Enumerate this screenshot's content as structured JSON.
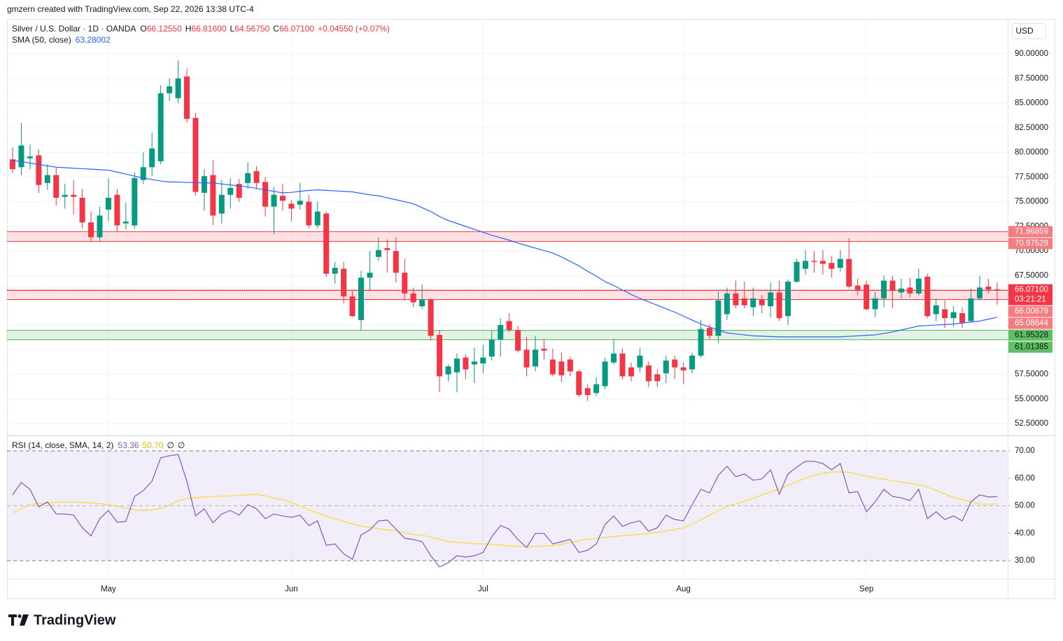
{
  "header": {
    "attribution": "gmzern created with TradingView.com, Sep 22, 2026 13:38 UTC-4",
    "currency": "USD"
  },
  "footer": {
    "brand": "TradingView"
  },
  "chart_data": [
    {
      "type": "candlestick",
      "legend": {
        "title": "Silver / U.S. Dollar · 1D · OANDA",
        "items": [
          {
            "key": "O",
            "value": "66.12550"
          },
          {
            "key": "H",
            "value": "66.81600"
          },
          {
            "key": "L",
            "value": "64.56750"
          },
          {
            "key": "C",
            "value": "66.07100"
          }
        ],
        "change": "+0.04550 (+0.07%)"
      },
      "up_color": "#089981",
      "down_color": "#f23645",
      "categories": [
        null,
        null,
        null,
        null,
        null,
        null,
        null,
        null,
        null,
        null,
        null,
        "May",
        null,
        null,
        null,
        null,
        null,
        null,
        null,
        null,
        null,
        null,
        null,
        null,
        null,
        null,
        null,
        null,
        null,
        null,
        null,
        null,
        "Jun",
        null,
        null,
        null,
        null,
        null,
        null,
        null,
        null,
        null,
        null,
        null,
        null,
        null,
        null,
        null,
        null,
        null,
        null,
        null,
        null,
        null,
        "Jul",
        null,
        null,
        null,
        null,
        null,
        null,
        null,
        null,
        null,
        null,
        null,
        null,
        null,
        null,
        null,
        null,
        null,
        null,
        null,
        null,
        null,
        null,
        "Aug",
        null,
        null,
        null,
        null,
        null,
        null,
        null,
        null,
        null,
        null,
        null,
        null,
        null,
        null,
        null,
        null,
        null,
        null,
        null,
        null,
        "Sep",
        null,
        null,
        null,
        null,
        null,
        null,
        null,
        null,
        null,
        null,
        null,
        null,
        null,
        null,
        null
      ],
      "open": [
        79.3,
        78.5,
        79.4,
        79.7,
        76.9,
        77.7,
        75.5,
        75.7,
        75.4,
        72.9,
        71.4,
        74.2,
        75.7,
        72.8,
        72.6,
        77.2,
        78.5,
        79.1,
        86.0,
        85.5,
        87.7,
        83.5,
        75.9,
        77.7,
        73.8,
        75.7,
        76.8,
        76.9,
        78.1,
        77.0,
        74.5,
        75.6,
        74.8,
        74.7,
        75.0,
        72.6,
        73.8,
        67.7,
        68.2,
        65.4,
        63.0,
        67.3,
        69.4,
        70.3,
        70.0,
        67.8,
        65.7,
        64.4,
        65.1,
        61.5,
        57.5,
        57.7,
        59.2,
        58.5,
        58.6,
        59.3,
        61.0,
        62.9,
        62.0,
        60.0,
        58.3,
        60.1,
        59.0,
        58.8,
        59.0,
        57.8,
        56.1,
        55.6,
        56.3,
        58.7,
        59.6,
        58.2,
        58.2,
        58.4,
        57.5,
        57.6,
        59.0,
        58.2,
        58.0,
        59.4,
        62.2,
        61.4,
        63.6,
        65.7,
        65.2,
        64.3,
        65.1,
        64.4,
        65.8,
        63.4,
        66.9,
        68.2,
        69.0,
        69.0,
        68.8,
        68.3,
        69.2,
        66.5,
        66.6,
        64.1,
        65.2,
        67.0,
        65.8,
        66.3,
        65.7,
        67.4,
        63.6,
        64.1,
        63.2,
        63.7,
        62.9,
        65.2,
        66.4,
        66.1255
      ],
      "high": [
        80.5,
        83,
        80.8,
        80.3,
        78.8,
        78.5,
        76.8,
        77.2,
        76.3,
        74.0,
        74.5,
        77.4,
        76.3,
        74.9,
        78,
        80,
        82.0,
        86.8,
        87.5,
        89.3,
        88.5,
        84.0,
        78.3,
        79.2,
        77.2,
        77.4,
        77.3,
        79.0,
        78.6,
        77.5,
        76.5,
        76.8,
        75.2,
        76.9,
        75.7,
        75.0,
        74.0,
        68.9,
        68.9,
        66.0,
        68.0,
        70.0,
        71.4,
        71.2,
        71.4,
        69.2,
        66.3,
        66.6,
        65.2,
        62.0,
        58.5,
        59.6,
        59.5,
        60.2,
        60.5,
        61.9,
        63.2,
        63.7,
        62.4,
        61.3,
        61.4,
        61.1,
        60.1,
        59.7,
        59.3,
        58.0,
        56.5,
        57.2,
        59.2,
        61.1,
        60.1,
        58.7,
        60.2,
        58.8,
        58.0,
        59.4,
        59.4,
        58.7,
        59.7,
        63.0,
        62.6,
        65.9,
        66.3,
        67.0,
        66.9,
        66.3,
        65.5,
        66.8,
        67.0,
        67.1,
        69.2,
        70.1,
        70.0,
        70.1,
        69.5,
        70.1,
        71.3,
        67.2,
        67.0,
        65.9,
        67.5,
        67.5,
        67.2,
        67.3,
        68.2,
        67.7,
        65.2,
        65.0,
        64.4,
        64.3,
        66.2,
        67.5,
        67.2,
        66.816
      ],
      "low": [
        77.9,
        77.7,
        78.3,
        75.9,
        76.2,
        74.6,
        74.3,
        73.7,
        72.3,
        70.9,
        71.0,
        73,
        72.0,
        72.2,
        72.3,
        76.8,
        77.6,
        78.8,
        85.2,
        85.0,
        83.0,
        75.6,
        74.1,
        72.6,
        72.8,
        74.3,
        75.0,
        76.3,
        76.3,
        73.5,
        71.7,
        74.1,
        73.0,
        74.2,
        72.3,
        72.3,
        67.4,
        66.7,
        64.7,
        63.3,
        62.0,
        66.0,
        69.0,
        67.8,
        66.8,
        65.0,
        64.3,
        64.1,
        60.9,
        55.7,
        56.8,
        55.7,
        57.0,
        56.6,
        57.6,
        58.9,
        59.3,
        61.8,
        59.7,
        57.3,
        57.8,
        59.0,
        57.3,
        56.7,
        57.3,
        55.2,
        54.8,
        55.3,
        56.0,
        58.5,
        57.0,
        56.8,
        57.7,
        56.2,
        56.2,
        56.6,
        57.0,
        56.5,
        57.6,
        59.2,
        61.0,
        60.7,
        63.0,
        64.2,
        64.2,
        63.4,
        63.7,
        63.3,
        62.9,
        62.5,
        66.8,
        67.6,
        67.8,
        67.6,
        67.3,
        67.9,
        66.2,
        65.5,
        64.0,
        63.3,
        64.3,
        64.2,
        65.2,
        65.3,
        65.5,
        63.2,
        62.9,
        62.2,
        62.3,
        62.2,
        62.8,
        65.0,
        65.7,
        64.5675
      ],
      "close": [
        78.3,
        80.7,
        79.6,
        76.7,
        77.7,
        75.4,
        75.7,
        75.5,
        72.9,
        71.4,
        73.6,
        75.4,
        72.6,
        73.0,
        77.4,
        78.5,
        80.4,
        86.0,
        86.7,
        87.5,
        83.4,
        76.0,
        77.6,
        73.6,
        75.7,
        76.4,
        75.4,
        77.9,
        76.9,
        74.5,
        75.7,
        75.1,
        74.3,
        75.1,
        72.6,
        74.0,
        67.7,
        68.3,
        65.4,
        63.4,
        67.3,
        67.8,
        70.1,
        70.1,
        67.8,
        65.7,
        64.8,
        65.1,
        61.4,
        57.3,
        58.3,
        59.1,
        58.0,
        58.8,
        59.2,
        61.0,
        62.5,
        62.0,
        59.9,
        58.2,
        60.0,
        59.9,
        57.5,
        57.4,
        57.8,
        55.4,
        55.4,
        56.5,
        58.8,
        59.6,
        57.3,
        57.3,
        59.4,
        56.8,
        56.8,
        58.9,
        58.2,
        57.9,
        59.4,
        62.1,
        61.4,
        65.0,
        65.7,
        64.5,
        64.5,
        65.2,
        64.5,
        65.8,
        63.2,
        66.9,
        68.9,
        69.0,
        68.9,
        68.7,
        68.2,
        69.2,
        66.4,
        66.0,
        64.1,
        65.2,
        67.0,
        66.0,
        66.2,
        65.7,
        67.2,
        63.4,
        64.5,
        63.2,
        63.8,
        62.7,
        65.2,
        66.3,
        66.1,
        66.071
      ],
      "series": [
        {
          "name": "SMA (50, close)",
          "legend_value": "63.28002",
          "color": "#2962ff",
          "values": [
            79.2,
            79.06,
            78.92,
            78.78,
            78.64,
            78.5,
            78.45,
            78.4,
            78.35,
            78.3,
            78.25,
            78.2,
            78.0,
            77.8,
            77.6,
            77.4,
            77.25,
            77.1,
            77.0,
            77.0,
            76.95,
            76.95,
            76.9,
            76.9,
            76.8,
            76.7,
            76.6,
            76.5,
            76.35,
            76.2,
            76.05,
            75.9,
            75.95,
            76.05,
            76.15,
            76.2,
            76.15,
            76.1,
            76.05,
            76.0,
            75.85,
            75.7,
            75.6,
            75.4,
            75.2,
            75.0,
            74.8,
            74.4,
            74.0,
            73.5,
            73.1,
            72.8,
            72.5,
            72.2,
            71.9,
            71.6,
            71.35,
            71.1,
            70.8,
            70.55,
            70.3,
            70.05,
            69.8,
            69.4,
            68.95,
            68.5,
            67.95,
            67.45,
            66.9,
            66.5,
            66.05,
            65.6,
            65.2,
            64.85,
            64.5,
            64.15,
            63.8,
            63.4,
            63.0,
            62.6,
            62.3,
            62.0,
            61.7,
            61.6,
            61.5,
            61.4,
            61.37,
            61.33,
            61.3,
            61.3,
            61.3,
            61.3,
            61.3,
            61.3,
            61.3,
            61.3,
            61.35,
            61.4,
            61.45,
            61.5,
            61.65,
            61.8,
            62.0,
            62.2,
            62.4,
            62.45,
            62.5,
            62.55,
            62.6,
            62.7,
            62.8,
            62.9,
            63.1,
            63.28
          ]
        }
      ],
      "zones": [
        {
          "top": 71.96859,
          "bottom": 70.97529,
          "color": "#f23645",
          "fill": "rgba(242,54,69,0.15)",
          "label_color": "#f77c80",
          "text_color": "#ffffff"
        },
        {
          "top": 66.00879,
          "bottom": 65.08644,
          "color": "#f23645",
          "fill": "rgba(242,54,69,0.15)",
          "label_color": "#f77c80",
          "text_color": "#ffffff"
        },
        {
          "top": 61.95328,
          "bottom": 61.01385,
          "color": "#4caf50",
          "fill": "rgba(76,175,80,0.15)",
          "label_color": "#5fbf63",
          "text_color": "#131722"
        }
      ],
      "last": {
        "value": 66.071,
        "label": "66.07100",
        "countdown": "03:21:21",
        "color": "#f23645"
      },
      "ylim": [
        51.37,
        93.54
      ],
      "yticks": [
        {
          "value": 52.5,
          "label": "52.50000"
        },
        {
          "value": 55,
          "label": "55.00000"
        },
        {
          "value": 57.5,
          "label": "57.50000"
        },
        {
          "value": 60,
          "label": "60.00000"
        },
        {
          "value": 62.5,
          "label": "62.50000"
        },
        {
          "value": 65,
          "label": "65.00000"
        },
        {
          "value": 67.5,
          "label": "67.50000"
        },
        {
          "value": 70,
          "label": "70.00000"
        },
        {
          "value": 72.5,
          "label": "72.50000"
        },
        {
          "value": 75,
          "label": "75.00000"
        },
        {
          "value": 77.5,
          "label": "77.50000"
        },
        {
          "value": 80,
          "label": "80.00000"
        },
        {
          "value": 82.5,
          "label": "82.50000"
        },
        {
          "value": 85,
          "label": "85.00000"
        },
        {
          "value": 87.5,
          "label": "87.50000"
        },
        {
          "value": 90,
          "label": "90.00000"
        }
      ],
      "grid": true
    },
    {
      "type": "line",
      "legend": {
        "title": "RSI (14, close, SMA, 14, 2)",
        "extra": [
          "∅",
          "∅"
        ]
      },
      "series": [
        {
          "name": "RSI",
          "legend_value": "53.36",
          "color": "#7e57c2",
          "values": [
            54,
            58.5,
            56,
            49.6,
            51.4,
            47,
            47,
            46.6,
            42,
            39,
            45.3,
            48.3,
            44,
            44.3,
            53.4,
            55.5,
            59,
            67.5,
            68.2,
            68.7,
            59,
            46.3,
            48.9,
            43.8,
            47,
            48.3,
            46.6,
            50.4,
            48.9,
            45.3,
            47,
            46.3,
            45.8,
            46.6,
            42.8,
            44.5,
            35.6,
            36.1,
            32.5,
            30.5,
            39.4,
            41.2,
            44.5,
            44.8,
            41.5,
            38.2,
            37.7,
            36.9,
            31.8,
            27.7,
            29.2,
            31.8,
            31.3,
            31.8,
            33,
            38.7,
            42.8,
            41.5,
            37.7,
            34.8,
            39.9,
            39.9,
            36.1,
            36.9,
            37.7,
            33,
            33.8,
            36.1,
            43.2,
            46.3,
            42.5,
            43.8,
            44.5,
            40.7,
            42,
            46.6,
            45,
            44.5,
            50.4,
            56,
            54.7,
            61.1,
            64.4,
            60.6,
            61.6,
            59.3,
            59.8,
            63.1,
            54.2,
            61.6,
            64.1,
            66.2,
            66.2,
            65.4,
            63.1,
            65.4,
            54.7,
            55.2,
            47.8,
            51.4,
            56,
            53.4,
            52.9,
            51.9,
            56,
            45.3,
            47.8,
            45,
            46.3,
            44.5,
            51.4,
            54,
            53.2,
            53.36
          ]
        },
        {
          "name": "RSI-based MA",
          "legend_value": "50.70",
          "color": "#fdd835",
          "values": [
            47.4,
            49,
            50.5,
            50.8,
            51,
            51.2,
            51.4,
            51.4,
            51.2,
            51,
            50.8,
            50.4,
            49.8,
            49.2,
            48.6,
            48.3,
            48.5,
            49,
            50.3,
            51.8,
            52.6,
            53,
            53.2,
            53.4,
            53.5,
            53.6,
            53.8,
            54,
            54.2,
            53.6,
            52.8,
            52.2,
            51.2,
            49.9,
            48.6,
            47.4,
            46.2,
            45.2,
            44.3,
            43.4,
            42.6,
            42.2,
            41.6,
            41.2,
            40.8,
            40.2,
            39.6,
            39.2,
            38.6,
            37.8,
            37,
            36.7,
            36.5,
            36.2,
            36.1,
            35.9,
            35.7,
            35.4,
            35.2,
            35.1,
            35.2,
            35.3,
            35.5,
            36,
            36.5,
            37.3,
            37.8,
            38.1,
            38.5,
            38.8,
            39.1,
            39.3,
            39.6,
            39.9,
            40.3,
            40.8,
            41.4,
            41.9,
            43.2,
            45,
            46.5,
            48.2,
            49.8,
            50.7,
            51.7,
            52.8,
            53.9,
            55,
            56,
            57.5,
            58.8,
            60,
            61,
            61.8,
            62.3,
            62.4,
            62.2,
            61.5,
            60.8,
            60.2,
            59.7,
            59.1,
            58.6,
            58.2,
            57.6,
            56.8,
            55.6,
            54.3,
            53.1,
            52.2,
            51.4,
            50.6,
            50.6,
            50.7
          ]
        }
      ],
      "band": {
        "upper": 70,
        "lower": 30,
        "fill": "rgba(126,87,194,0.1)"
      },
      "midline": 50,
      "ylim": [
        23.4,
        75.1
      ],
      "yticks": [
        {
          "value": 30,
          "label": "30.00"
        },
        {
          "value": 40,
          "label": "40.00"
        },
        {
          "value": 50,
          "label": "50.00"
        },
        {
          "value": 60,
          "label": "60.00"
        },
        {
          "value": 70,
          "label": "70.00"
        }
      ]
    }
  ]
}
